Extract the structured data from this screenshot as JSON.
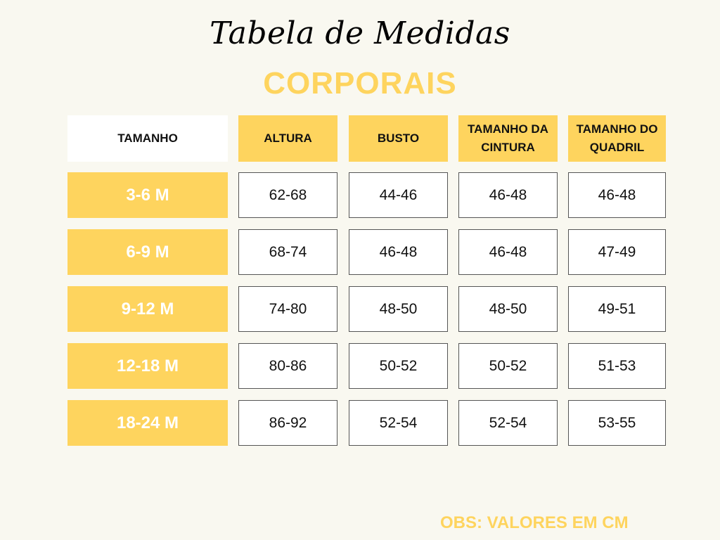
{
  "title": "Tabela de Medidas",
  "subtitle": "CORPORAIS",
  "headers": [
    "TAMANHO",
    "ALTURA",
    "BUSTO",
    "TAMANHO DA CINTURA",
    "TAMANHO DO QUADRIL"
  ],
  "rows": [
    {
      "size": "3-6 M",
      "values": [
        "62-68",
        "44-46",
        "46-48",
        "46-48"
      ]
    },
    {
      "size": "6-9 M",
      "values": [
        "68-74",
        "46-48",
        "46-48",
        "47-49"
      ]
    },
    {
      "size": "9-12 M",
      "values": [
        "74-80",
        "48-50",
        "48-50",
        "49-51"
      ]
    },
    {
      "size": "12-18 M",
      "values": [
        "80-86",
        "50-52",
        "50-52",
        "51-53"
      ]
    },
    {
      "size": "18-24 M",
      "values": [
        "86-92",
        "52-54",
        "52-54",
        "53-55"
      ]
    }
  ],
  "note": "OBS: VALORES EM CM",
  "colors": {
    "accent": "#fed45e",
    "background": "#f9f8f0"
  }
}
